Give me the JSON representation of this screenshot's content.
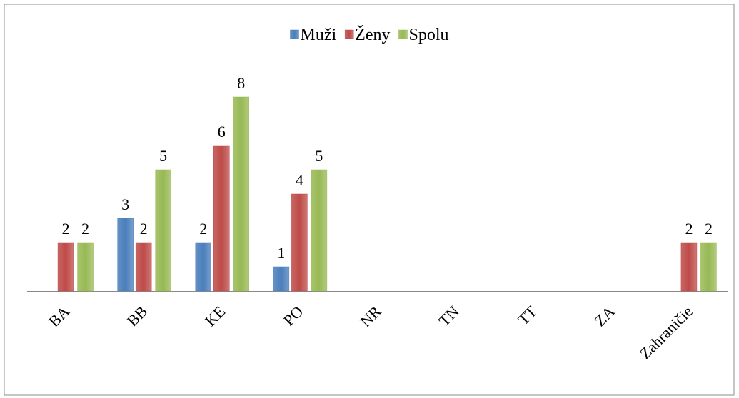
{
  "chart_data": {
    "type": "bar",
    "categories": [
      "BA",
      "BB",
      "KE",
      "PO",
      "NR",
      "TN",
      "TT",
      "ZA",
      "Zahraničie"
    ],
    "series": [
      {
        "name": "Muži",
        "color": "#4a7ebb",
        "values": [
          null,
          3,
          2,
          1,
          null,
          null,
          null,
          null,
          null
        ]
      },
      {
        "name": "Ženy",
        "color": "#be4b48",
        "values": [
          2,
          2,
          6,
          4,
          null,
          null,
          null,
          null,
          2
        ]
      },
      {
        "name": "Spolu",
        "color": "#98b954",
        "values": [
          2,
          5,
          8,
          5,
          null,
          null,
          null,
          null,
          2
        ]
      }
    ],
    "legend": "top"
  }
}
